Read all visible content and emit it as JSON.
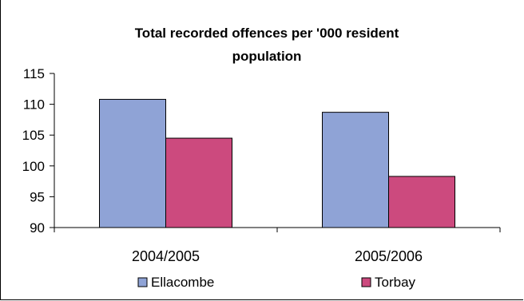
{
  "chart_data": {
    "type": "bar",
    "title_lines": [
      "Total recorded offences per '000 resident",
      "population"
    ],
    "categories": [
      "2004/2005",
      "2005/2006"
    ],
    "series": [
      {
        "name": "Ellacombe",
        "values": [
          110.8,
          108.7
        ],
        "color": "#8fa3d6"
      },
      {
        "name": "Torbay",
        "values": [
          104.5,
          98.3
        ],
        "color": "#cc4a7e"
      }
    ],
    "ylim": [
      90,
      115
    ],
    "yticks": [
      90,
      95,
      100,
      105,
      110,
      115
    ],
    "xlabel": "",
    "ylabel": "",
    "grid": false,
    "legend": "bottom"
  }
}
